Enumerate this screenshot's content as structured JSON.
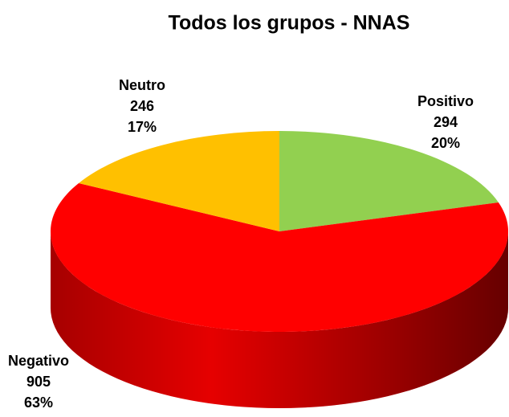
{
  "chart_data": {
    "type": "pie",
    "title": "Todos los grupos - NNAS",
    "categories": [
      "Positivo",
      "Negativo",
      "Neutro"
    ],
    "values": [
      294,
      905,
      246
    ],
    "percent_labels": [
      "20%",
      "63%",
      "17%"
    ],
    "colors": [
      "#92d050",
      "#ff0000",
      "#ffc000"
    ]
  }
}
